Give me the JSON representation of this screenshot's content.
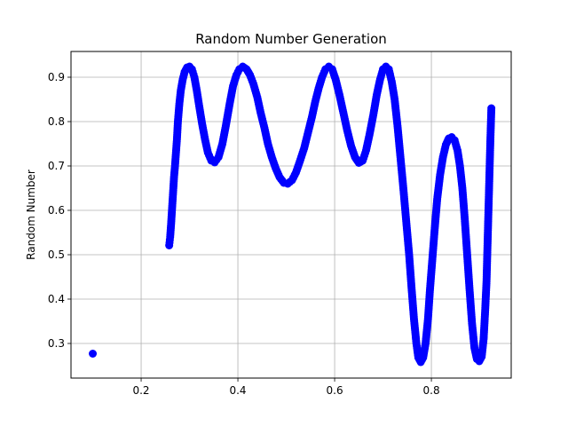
{
  "chart_data": {
    "type": "scatter",
    "title": "Random Number Generation",
    "xlabel": "",
    "ylabel": "Random Number",
    "xlim": [
      0.055,
      0.965
    ],
    "ylim": [
      0.222,
      0.958
    ],
    "xticks": [
      0.2,
      0.4,
      0.6,
      0.8
    ],
    "yticks": [
      0.3,
      0.4,
      0.5,
      0.6,
      0.7,
      0.8,
      0.9
    ],
    "xtick_labels": [
      "0.2",
      "0.4",
      "0.6",
      "0.8"
    ],
    "ytick_labels": [
      "0.3",
      "0.4",
      "0.5",
      "0.6",
      "0.7",
      "0.8",
      "0.9"
    ],
    "grid": true,
    "marker_color": "#0000ff",
    "series": [
      {
        "points": [
          [
            0.1,
            0.277
          ],
          [
            0.258,
            0.521
          ],
          [
            0.26,
            0.54
          ],
          [
            0.262,
            0.57
          ],
          [
            0.264,
            0.605
          ],
          [
            0.266,
            0.64
          ],
          [
            0.268,
            0.675
          ],
          [
            0.27,
            0.7
          ],
          [
            0.272,
            0.73
          ],
          [
            0.274,
            0.76
          ],
          [
            0.276,
            0.8
          ],
          [
            0.279,
            0.84
          ],
          [
            0.282,
            0.87
          ],
          [
            0.286,
            0.895
          ],
          [
            0.29,
            0.912
          ],
          [
            0.295,
            0.922
          ],
          [
            0.3,
            0.924
          ],
          [
            0.305,
            0.918
          ],
          [
            0.31,
            0.9
          ],
          [
            0.315,
            0.87
          ],
          [
            0.32,
            0.835
          ],
          [
            0.326,
            0.795
          ],
          [
            0.332,
            0.76
          ],
          [
            0.338,
            0.73
          ],
          [
            0.345,
            0.712
          ],
          [
            0.352,
            0.708
          ],
          [
            0.36,
            0.72
          ],
          [
            0.368,
            0.75
          ],
          [
            0.375,
            0.79
          ],
          [
            0.383,
            0.84
          ],
          [
            0.39,
            0.88
          ],
          [
            0.397,
            0.905
          ],
          [
            0.403,
            0.918
          ],
          [
            0.41,
            0.924
          ],
          [
            0.418,
            0.918
          ],
          [
            0.425,
            0.905
          ],
          [
            0.432,
            0.885
          ],
          [
            0.44,
            0.855
          ],
          [
            0.447,
            0.82
          ],
          [
            0.455,
            0.785
          ],
          [
            0.462,
            0.75
          ],
          [
            0.47,
            0.72
          ],
          [
            0.478,
            0.695
          ],
          [
            0.486,
            0.675
          ],
          [
            0.495,
            0.662
          ],
          [
            0.503,
            0.66
          ],
          [
            0.512,
            0.668
          ],
          [
            0.52,
            0.685
          ],
          [
            0.528,
            0.71
          ],
          [
            0.537,
            0.74
          ],
          [
            0.545,
            0.775
          ],
          [
            0.553,
            0.81
          ],
          [
            0.56,
            0.845
          ],
          [
            0.567,
            0.875
          ],
          [
            0.574,
            0.9
          ],
          [
            0.581,
            0.918
          ],
          [
            0.588,
            0.924
          ],
          [
            0.595,
            0.918
          ],
          [
            0.602,
            0.895
          ],
          [
            0.61,
            0.86
          ],
          [
            0.618,
            0.82
          ],
          [
            0.626,
            0.78
          ],
          [
            0.634,
            0.745
          ],
          [
            0.642,
            0.72
          ],
          [
            0.65,
            0.707
          ],
          [
            0.658,
            0.712
          ],
          [
            0.665,
            0.735
          ],
          [
            0.672,
            0.77
          ],
          [
            0.68,
            0.815
          ],
          [
            0.687,
            0.86
          ],
          [
            0.694,
            0.895
          ],
          [
            0.7,
            0.918
          ],
          [
            0.706,
            0.924
          ],
          [
            0.712,
            0.918
          ],
          [
            0.718,
            0.89
          ],
          [
            0.724,
            0.85
          ],
          [
            0.73,
            0.79
          ],
          [
            0.736,
            0.72
          ],
          [
            0.742,
            0.65
          ],
          [
            0.748,
            0.575
          ],
          [
            0.754,
            0.5
          ],
          [
            0.759,
            0.425
          ],
          [
            0.764,
            0.355
          ],
          [
            0.769,
            0.3
          ],
          [
            0.773,
            0.268
          ],
          [
            0.778,
            0.258
          ],
          [
            0.783,
            0.268
          ],
          [
            0.788,
            0.3
          ],
          [
            0.793,
            0.355
          ],
          [
            0.797,
            0.42
          ],
          [
            0.802,
            0.49
          ],
          [
            0.807,
            0.56
          ],
          [
            0.812,
            0.625
          ],
          [
            0.818,
            0.68
          ],
          [
            0.824,
            0.72
          ],
          [
            0.83,
            0.748
          ],
          [
            0.836,
            0.762
          ],
          [
            0.842,
            0.765
          ],
          [
            0.848,
            0.758
          ],
          [
            0.854,
            0.735
          ],
          [
            0.859,
            0.7
          ],
          [
            0.864,
            0.65
          ],
          [
            0.869,
            0.58
          ],
          [
            0.874,
            0.5
          ],
          [
            0.879,
            0.42
          ],
          [
            0.884,
            0.345
          ],
          [
            0.889,
            0.29
          ],
          [
            0.894,
            0.265
          ],
          [
            0.899,
            0.26
          ],
          [
            0.904,
            0.27
          ],
          [
            0.908,
            0.31
          ],
          [
            0.911,
            0.37
          ],
          [
            0.914,
            0.44
          ],
          [
            0.916,
            0.52
          ],
          [
            0.918,
            0.6
          ],
          [
            0.92,
            0.68
          ],
          [
            0.922,
            0.76
          ],
          [
            0.924,
            0.83
          ]
        ]
      }
    ]
  }
}
